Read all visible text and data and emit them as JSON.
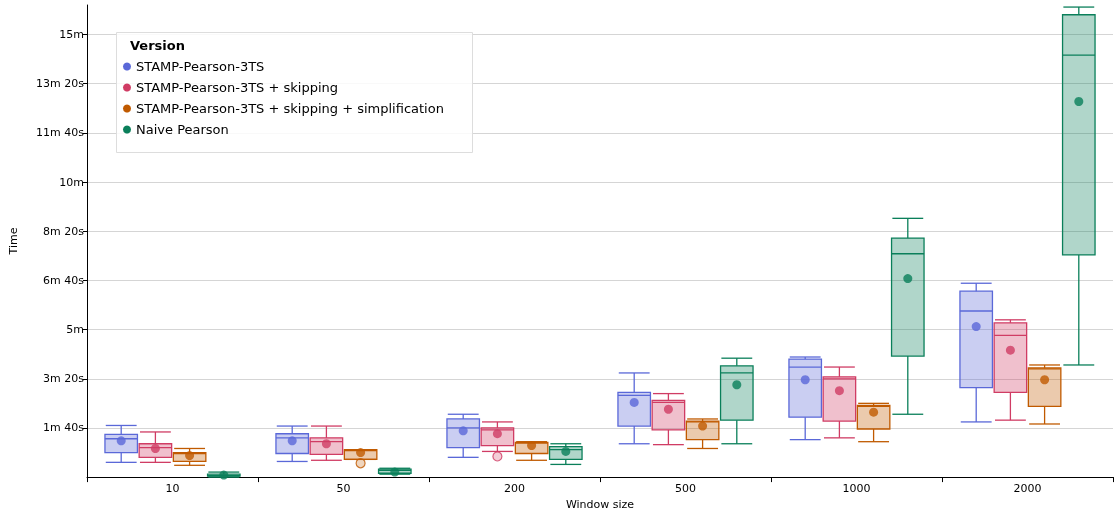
{
  "chart_data": {
    "type": "box",
    "xlabel": "Window size",
    "ylabel": "Time",
    "legend_title": "Version",
    "legend": "top left",
    "grid": "y",
    "marker": "circle",
    "categories": [
      "10",
      "50",
      "200",
      "500",
      "1000",
      "2000"
    ],
    "ylim": [
      0,
      16
    ],
    "yticks": [
      {
        "value": 1.667,
        "label": "1m 40s"
      },
      {
        "value": 3.333,
        "label": "3m 20s"
      },
      {
        "value": 5,
        "label": "5m"
      },
      {
        "value": 6.667,
        "label": "6m 40s"
      },
      {
        "value": 8.333,
        "label": "8m 20s"
      },
      {
        "value": 10,
        "label": "10m"
      },
      {
        "value": 11.667,
        "label": "11m 40s"
      },
      {
        "value": 13.333,
        "label": "13m 20s"
      },
      {
        "value": 15,
        "label": "15m"
      }
    ],
    "series": [
      {
        "name": "STAMP-Pearson-3TS",
        "color": "#5a68d8",
        "boxes": [
          {
            "low": 0.5,
            "q1": 0.83,
            "median": 1.3,
            "q3": 1.45,
            "high": 1.75,
            "mean": 1.23
          },
          {
            "low": 0.53,
            "q1": 0.8,
            "median": 1.33,
            "q3": 1.47,
            "high": 1.73,
            "mean": 1.23
          },
          {
            "low": 0.67,
            "q1": 1,
            "median": 1.67,
            "q3": 1.97,
            "high": 2.13,
            "mean": 1.57
          },
          {
            "low": 1.13,
            "q1": 1.73,
            "median": 2.77,
            "q3": 2.87,
            "high": 3.53,
            "mean": 2.53
          },
          {
            "low": 1.27,
            "q1": 2.03,
            "median": 3.73,
            "q3": 4,
            "high": 4.07,
            "mean": 3.3
          },
          {
            "low": 1.87,
            "q1": 3.03,
            "median": 5.63,
            "q3": 6.3,
            "high": 6.57,
            "mean": 5.1
          }
        ]
      },
      {
        "name": "STAMP-Pearson-3TS + skipping",
        "color": "#d03c64",
        "boxes": [
          {
            "low": 0.5,
            "q1": 0.67,
            "median": 1,
            "q3": 1.13,
            "high": 1.53,
            "mean": 0.97
          },
          {
            "low": 0.57,
            "q1": 0.77,
            "median": 1.2,
            "q3": 1.33,
            "high": 1.73,
            "mean": 1.13
          },
          {
            "low": 0.87,
            "q1": 1.07,
            "median": 1.6,
            "q3": 1.67,
            "high": 1.87,
            "mean": 1.47,
            "outliers": [
              0.7
            ]
          },
          {
            "low": 1.1,
            "q1": 1.6,
            "median": 2.53,
            "q3": 2.6,
            "high": 2.83,
            "mean": 2.3
          },
          {
            "low": 1.33,
            "q1": 1.9,
            "median": 3.33,
            "q3": 3.4,
            "high": 3.73,
            "mean": 2.93
          },
          {
            "low": 1.93,
            "q1": 2.87,
            "median": 4.8,
            "q3": 5.23,
            "high": 5.33,
            "mean": 4.3
          }
        ]
      },
      {
        "name": "STAMP-Pearson-3TS + skipping + simplification",
        "color": "#c05a00",
        "boxes": [
          {
            "low": 0.4,
            "q1": 0.53,
            "median": 0.8,
            "q3": 0.83,
            "high": 0.97,
            "mean": 0.73
          },
          {
            "low": 0.6,
            "q1": 0.6,
            "median": 0.9,
            "q3": 0.93,
            "high": 0.93,
            "mean": 0.83,
            "outliers": [
              0.47
            ]
          },
          {
            "low": 0.57,
            "q1": 0.8,
            "median": 1.15,
            "q3": 1.18,
            "high": 1.2,
            "mean": 1.07
          },
          {
            "low": 0.97,
            "q1": 1.27,
            "median": 1.87,
            "q3": 1.9,
            "high": 1.97,
            "mean": 1.73
          },
          {
            "low": 1.2,
            "q1": 1.63,
            "median": 2.4,
            "q3": 2.43,
            "high": 2.5,
            "mean": 2.2
          },
          {
            "low": 1.8,
            "q1": 2.4,
            "median": 3.67,
            "q3": 3.7,
            "high": 3.8,
            "mean": 3.3
          }
        ]
      },
      {
        "name": "Naive Pearson",
        "color": "#0a7f5a",
        "boxes": [
          {
            "low": 0,
            "q1": 0.03,
            "median": 0.05,
            "q3": 0.1,
            "high": 0.17,
            "mean": 0.07
          },
          {
            "low": 0.1,
            "q1": 0.13,
            "median": 0.23,
            "q3": 0.27,
            "high": 0.3,
            "mean": 0.17
          },
          {
            "low": 0.43,
            "q1": 0.6,
            "median": 0.93,
            "q3": 1.03,
            "high": 1.13,
            "mean": 0.87
          },
          {
            "low": 1.13,
            "q1": 1.93,
            "median": 3.53,
            "q3": 3.77,
            "high": 4.03,
            "mean": 3.13
          },
          {
            "low": 2.13,
            "q1": 4.1,
            "median": 7.57,
            "q3": 8.1,
            "high": 8.77,
            "mean": 6.73
          },
          {
            "low": 3.8,
            "q1": 7.53,
            "median": 14.3,
            "q3": 15.67,
            "high": 15.93,
            "mean": 12.73
          }
        ]
      }
    ]
  }
}
